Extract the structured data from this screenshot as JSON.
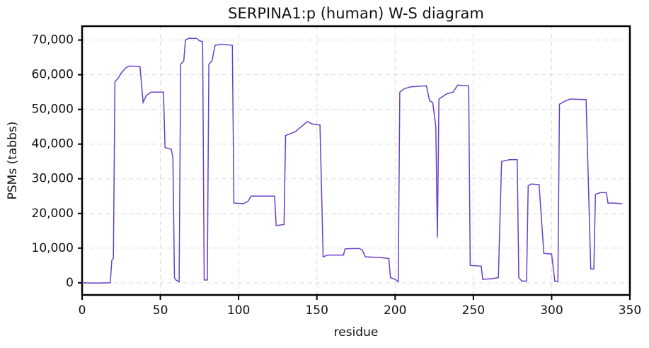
{
  "chart_data": {
    "type": "line",
    "title": "SERPINA1:p (human) W-S diagram",
    "xlabel": "residue",
    "ylabel": "PSMs (tabbs)",
    "xlim": [
      0,
      350
    ],
    "ylim": [
      -3500,
      74000
    ],
    "xticks": [
      0,
      50,
      100,
      150,
      200,
      250,
      300,
      350
    ],
    "yticks": [
      0,
      {
        "value": 10000,
        "label": "10,000"
      },
      {
        "value": 20000,
        "label": "20,000"
      },
      {
        "value": 30000,
        "label": "30,000"
      },
      {
        "value": 40000,
        "label": "40,000"
      },
      {
        "value": 50000,
        "label": "50,000"
      },
      {
        "value": 60000,
        "label": "60,000"
      },
      {
        "value": 70000,
        "label": "70,000"
      }
    ],
    "grid": true,
    "series": [
      {
        "color": "#6a3fc8",
        "x": [
          0,
          10,
          18,
          19,
          20,
          21,
          23,
          25,
          28,
          30,
          37,
          39,
          41,
          44,
          52,
          53,
          57,
          58,
          59,
          60,
          62,
          63,
          65,
          66,
          68,
          73,
          75,
          77,
          78,
          80,
          81,
          83,
          85,
          89,
          96,
          97,
          103,
          106,
          108,
          123,
          124,
          129,
          130,
          136,
          140,
          144,
          147,
          152,
          154,
          157,
          167,
          168,
          177,
          179,
          181,
          190,
          196,
          197,
          200,
          202,
          203,
          206,
          210,
          220,
          222,
          224,
          226,
          227,
          228,
          233,
          237,
          240,
          247,
          248,
          255,
          256,
          262,
          266,
          268,
          273,
          278,
          279,
          281,
          284,
          285,
          287,
          292,
          295,
          300,
          302,
          304,
          305,
          309,
          312,
          322,
          325,
          327,
          328,
          331,
          335,
          336,
          340,
          345
        ],
        "values": [
          0,
          -100,
          0,
          6500,
          7000,
          58000,
          59000,
          60500,
          62000,
          62500,
          62400,
          52000,
          54000,
          55000,
          55000,
          39000,
          38500,
          36000,
          1500,
          800,
          300,
          63000,
          64000,
          70000,
          70500,
          70500,
          69800,
          69500,
          800,
          800,
          63000,
          64000,
          68500,
          68800,
          68500,
          23000,
          22800,
          23500,
          25000,
          25000,
          16500,
          16800,
          42500,
          43500,
          45000,
          46500,
          45800,
          45500,
          7500,
          8000,
          8000,
          9800,
          9900,
          9500,
          7500,
          7300,
          7000,
          1500,
          1000,
          300,
          55000,
          56000,
          56500,
          56800,
          52500,
          52000,
          45000,
          13000,
          53000,
          54500,
          55000,
          57000,
          56800,
          5000,
          4800,
          1000,
          1200,
          1500,
          35000,
          35500,
          35500,
          1500,
          500,
          500,
          28000,
          28500,
          28300,
          8500,
          8300,
          500,
          400,
          51500,
          52500,
          53000,
          52800,
          4000,
          4000,
          25500,
          26000,
          26000,
          23000,
          23000,
          22800
        ]
      }
    ]
  }
}
